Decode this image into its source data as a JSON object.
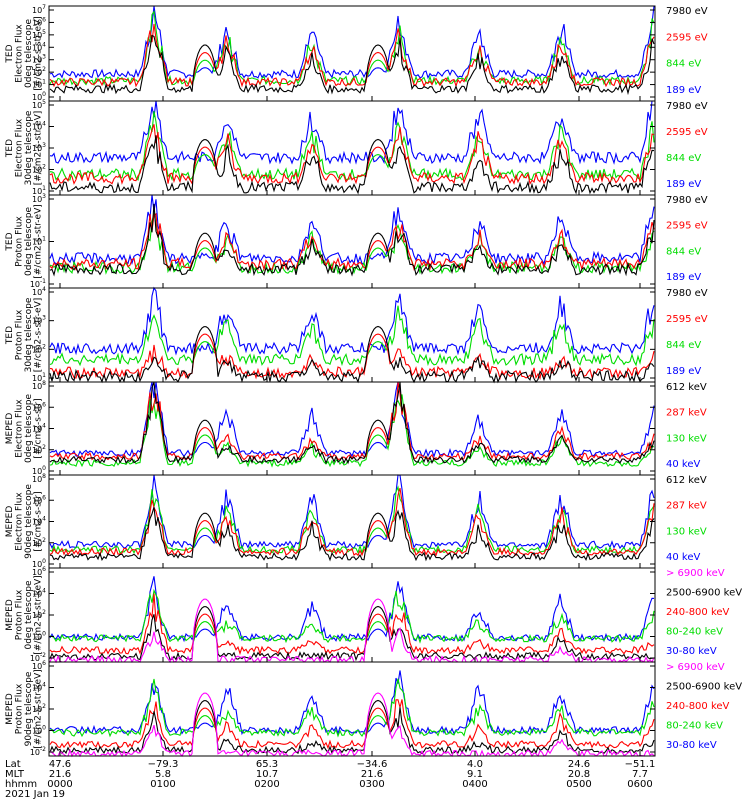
{
  "chart_data": [
    {
      "type": "line",
      "ylabel": [
        "TED",
        "Electron Flux",
        "0deg telescope",
        "[#/cm2-s-str-eV]"
      ],
      "yscale": "log",
      "ylim_exp": [
        0,
        7
      ],
      "y_tick_labels": [
        "10^0",
        "10^1",
        "10^2",
        "10^3",
        "10^4",
        "10^5",
        "10^6",
        "10^7"
      ],
      "series": [
        {
          "name": "7980 eV",
          "color": "#000000",
          "base_exp": 0.9,
          "passes": [
            0,
            0.75,
            0.45,
            0.35,
            0.5,
            0.35,
            0.4,
            0.55
          ]
        },
        {
          "name": "2595 eV",
          "color": "#ff0000",
          "base_exp": 1.4,
          "passes": [
            0,
            0.75,
            0.5,
            0.4,
            0.6,
            0.4,
            0.5,
            0.65
          ]
        },
        {
          "name": "844 eV",
          "color": "#00dd00",
          "base_exp": 1.5,
          "passes": [
            0,
            0.78,
            0.5,
            0.45,
            0.6,
            0.4,
            0.55,
            0.7
          ]
        },
        {
          "name": "189 eV",
          "color": "#0000ff",
          "base_exp": 2.0,
          "passes": [
            0,
            0.8,
            0.55,
            0.5,
            0.7,
            0.5,
            0.6,
            0.75
          ]
        }
      ]
    },
    {
      "type": "line",
      "ylabel": [
        "TED",
        "Electron Flux",
        "30deg telescope",
        "[#/cm2-s-str-eV]"
      ],
      "yscale": "log",
      "ylim_exp": [
        0,
        5
      ],
      "y_tick_labels": [
        "10^1",
        "10^2",
        "10^3",
        "10^4",
        "10^5"
      ],
      "series": [
        {
          "name": "7980 eV",
          "color": "#000000",
          "base_exp": 0.4,
          "passes": [
            0,
            0.65,
            0.4,
            0.4,
            0.5,
            0.35,
            0.45,
            0.55
          ]
        },
        {
          "name": "2595 eV",
          "color": "#ff0000",
          "base_exp": 0.9,
          "passes": [
            0,
            0.7,
            0.45,
            0.45,
            0.55,
            0.45,
            0.5,
            0.6
          ]
        },
        {
          "name": "844 eV",
          "color": "#00dd00",
          "base_exp": 1.1,
          "passes": [
            0,
            0.72,
            0.5,
            0.5,
            0.6,
            0.45,
            0.55,
            0.65
          ]
        },
        {
          "name": "189 eV",
          "color": "#0000ff",
          "base_exp": 2.0,
          "passes": [
            0,
            0.78,
            0.55,
            0.55,
            0.7,
            0.55,
            0.6,
            0.75
          ]
        }
      ]
    },
    {
      "type": "line",
      "ylabel": [
        "TED",
        "Proton Flux",
        "0deg telescope",
        "[#/cm2-s-str-eV]"
      ],
      "yscale": "log",
      "ylim_exp": [
        -1,
        4
      ],
      "y_tick_labels": [
        "10^-1",
        "10^1",
        "10^3"
      ],
      "series": [
        {
          "name": "7980 eV",
          "color": "#000000",
          "base_exp": 0.0,
          "passes": [
            0,
            0.65,
            0.3,
            0.35,
            0.5,
            0.3,
            0.35,
            0.5
          ]
        },
        {
          "name": "2595 eV",
          "color": "#ff0000",
          "base_exp": 0.3,
          "passes": [
            0,
            0.68,
            0.35,
            0.35,
            0.55,
            0.35,
            0.4,
            0.55
          ]
        },
        {
          "name": "844 eV",
          "color": "#00dd00",
          "base_exp": 0.1,
          "passes": [
            0,
            0.55,
            0.35,
            0.4,
            0.45,
            0.35,
            0.35,
            0.45
          ]
        },
        {
          "name": "189 eV",
          "color": "#0000ff",
          "base_exp": 0.6,
          "passes": [
            0,
            0.75,
            0.5,
            0.5,
            0.65,
            0.5,
            0.55,
            0.7
          ]
        }
      ]
    },
    {
      "type": "line",
      "ylabel": [
        "TED",
        "Proton Flux",
        "30deg telescope",
        "[#/cm2-s-str-eV]"
      ],
      "yscale": "log",
      "ylim_exp": [
        0,
        5
      ],
      "y_tick_labels": [
        "10^1",
        "10^2",
        "10^3",
        "10^4"
      ],
      "series": [
        {
          "name": "7980 eV",
          "color": "#000000",
          "base_exp": 0.3,
          "passes": [
            0,
            0.2,
            0.2,
            0.2,
            0.2,
            0.2,
            0.2,
            0.2
          ]
        },
        {
          "name": "2595 eV",
          "color": "#ff0000",
          "base_exp": 0.5,
          "passes": [
            0,
            0.25,
            0.2,
            0.2,
            0.25,
            0.2,
            0.2,
            0.2
          ]
        },
        {
          "name": "844 eV",
          "color": "#00dd00",
          "base_exp": 1.2,
          "passes": [
            0,
            0.55,
            0.5,
            0.45,
            0.55,
            0.45,
            0.5,
            0.5
          ]
        },
        {
          "name": "189 eV",
          "color": "#0000ff",
          "base_exp": 1.8,
          "passes": [
            0,
            0.65,
            0.55,
            0.5,
            0.6,
            0.5,
            0.55,
            0.6
          ]
        }
      ]
    },
    {
      "type": "line",
      "ylabel": [
        "MEPED",
        "Electron Flux",
        "0deg telescope",
        "[#/cm2-s-str]"
      ],
      "yscale": "log",
      "ylim_exp": [
        -0.5,
        8
      ],
      "y_tick_labels": [
        "10^0",
        "10^2",
        "10^4",
        "10^6",
        "10^8"
      ],
      "series": [
        {
          "name": "612 keV",
          "color": "#000000",
          "base_exp": 0.9,
          "passes": [
            0,
            0.9,
            0.2,
            0.2,
            0.88,
            0.2,
            0.3,
            0.2
          ]
        },
        {
          "name": "287 keV",
          "color": "#ff0000",
          "base_exp": 1.2,
          "passes": [
            0,
            0.9,
            0.25,
            0.25,
            0.9,
            0.25,
            0.35,
            0.25
          ]
        },
        {
          "name": "130 keV",
          "color": "#00dd00",
          "base_exp": 0.6,
          "passes": [
            0,
            0.88,
            0.2,
            0.2,
            0.88,
            0.2,
            0.3,
            0.2
          ]
        },
        {
          "name": "40 keV",
          "color": "#0000ff",
          "base_exp": 1.5,
          "passes": [
            0,
            0.92,
            0.6,
            0.45,
            0.9,
            0.4,
            0.55,
            0.5
          ]
        }
      ]
    },
    {
      "type": "line",
      "ylabel": [
        "MEPED",
        "Electron Flux",
        "90deg telescope",
        "[#/cm2-s-str]"
      ],
      "yscale": "log",
      "ylim_exp": [
        0,
        8
      ],
      "y_tick_labels": [
        "10^0",
        "10^2",
        "10^4",
        "10^6",
        "10^8"
      ],
      "series": [
        {
          "name": "612 keV",
          "color": "#000000",
          "base_exp": 1.0,
          "passes": [
            0,
            0.6,
            0.35,
            0.35,
            0.55,
            0.35,
            0.4,
            0.45
          ]
        },
        {
          "name": "287 keV",
          "color": "#ff0000",
          "base_exp": 1.4,
          "passes": [
            0,
            0.65,
            0.45,
            0.45,
            0.65,
            0.45,
            0.45,
            0.55
          ]
        },
        {
          "name": "130 keV",
          "color": "#00dd00",
          "base_exp": 1.6,
          "passes": [
            0,
            0.7,
            0.5,
            0.5,
            0.7,
            0.5,
            0.5,
            0.6
          ]
        },
        {
          "name": "40 keV",
          "color": "#0000ff",
          "base_exp": 2.0,
          "passes": [
            0,
            0.8,
            0.65,
            0.6,
            0.8,
            0.6,
            0.6,
            0.7
          ]
        }
      ]
    },
    {
      "type": "line",
      "ylabel": [
        "MEPED",
        "Proton Flux",
        "0deg telescope",
        "[#/cm2-s-str-keV]"
      ],
      "yscale": "log",
      "ylim_exp": [
        -2,
        6
      ],
      "y_tick_labels": [
        "10^-2",
        "10^0",
        "10^2",
        "10^4",
        "10^6"
      ],
      "series": [
        {
          "name": "> 6900 keV",
          "color": "#ff00ff",
          "base_exp": -1.8,
          "passes": [
            0,
            0.3,
            0,
            0,
            0.3,
            0,
            0.15,
            0
          ]
        },
        {
          "name": "2500-6900 keV",
          "color": "#000000",
          "base_exp": -1.5,
          "passes": [
            0,
            0.45,
            0,
            0,
            0.45,
            0,
            0.2,
            0
          ]
        },
        {
          "name": "240-800 keV",
          "color": "#ff0000",
          "base_exp": -1.0,
          "passes": [
            0,
            0.55,
            0.1,
            0.1,
            0.55,
            0.1,
            0.25,
            0.1
          ]
        },
        {
          "name": "80-240 keV",
          "color": "#00dd00",
          "base_exp": 0.0,
          "passes": [
            0,
            0.6,
            0.2,
            0.2,
            0.6,
            0.2,
            0.3,
            0.25
          ]
        },
        {
          "name": "30-80 keV",
          "color": "#0000ff",
          "base_exp": 0.1,
          "passes": [
            0,
            0.65,
            0.45,
            0.4,
            0.65,
            0.4,
            0.45,
            0.55
          ]
        }
      ]
    },
    {
      "type": "line",
      "ylabel": [
        "MEPED",
        "Proton Flux",
        "90deg telescope",
        "[#/cm2-s-str-keV]"
      ],
      "yscale": "log",
      "ylim_exp": [
        -2,
        6
      ],
      "y_tick_labels": [
        "10^-2",
        "10^0",
        "10^2",
        "10^4",
        "10^6"
      ],
      "series": [
        {
          "name": "> 6900 keV",
          "color": "#ff00ff",
          "base_exp": -1.8,
          "passes": [
            0,
            0.3,
            0,
            0,
            0.3,
            0,
            0.15,
            0
          ]
        },
        {
          "name": "2500-6900 keV",
          "color": "#000000",
          "base_exp": -1.5,
          "passes": [
            0,
            0.4,
            0.1,
            0.1,
            0.45,
            0.1,
            0.2,
            0.1
          ]
        },
        {
          "name": "240-800 keV",
          "color": "#ff0000",
          "base_exp": -1.0,
          "passes": [
            0,
            0.5,
            0.25,
            0.2,
            0.55,
            0.2,
            0.3,
            0.25
          ]
        },
        {
          "name": "80-240 keV",
          "color": "#00dd00",
          "base_exp": 0.0,
          "passes": [
            0,
            0.55,
            0.3,
            0.3,
            0.6,
            0.3,
            0.3,
            0.35
          ]
        },
        {
          "name": "30-80 keV",
          "color": "#0000ff",
          "base_exp": 0.2,
          "passes": [
            0,
            0.6,
            0.55,
            0.5,
            0.65,
            0.5,
            0.5,
            0.6
          ]
        }
      ]
    }
  ],
  "x_axis": {
    "row_labels": [
      "Lat",
      "MLT",
      "hhmm"
    ],
    "ticks": [
      {
        "lat": "47.6",
        "mlt": "21.6",
        "hhmm": "0000"
      },
      {
        "lat": "−79.3",
        "mlt": "5.8",
        "hhmm": "0100"
      },
      {
        "lat": "65.3",
        "mlt": "10.7",
        "hhmm": "0200"
      },
      {
        "lat": "−34.6",
        "mlt": "21.6",
        "hhmm": "0300"
      },
      {
        "lat": "4.0",
        "mlt": "9.1",
        "hhmm": "0400"
      },
      {
        "lat": "24.6",
        "mlt": "20.8",
        "hhmm": "0500"
      },
      {
        "lat": "−51.1",
        "mlt": "7.7",
        "hhmm": "0600"
      }
    ],
    "date": "2021 Jan 19"
  }
}
